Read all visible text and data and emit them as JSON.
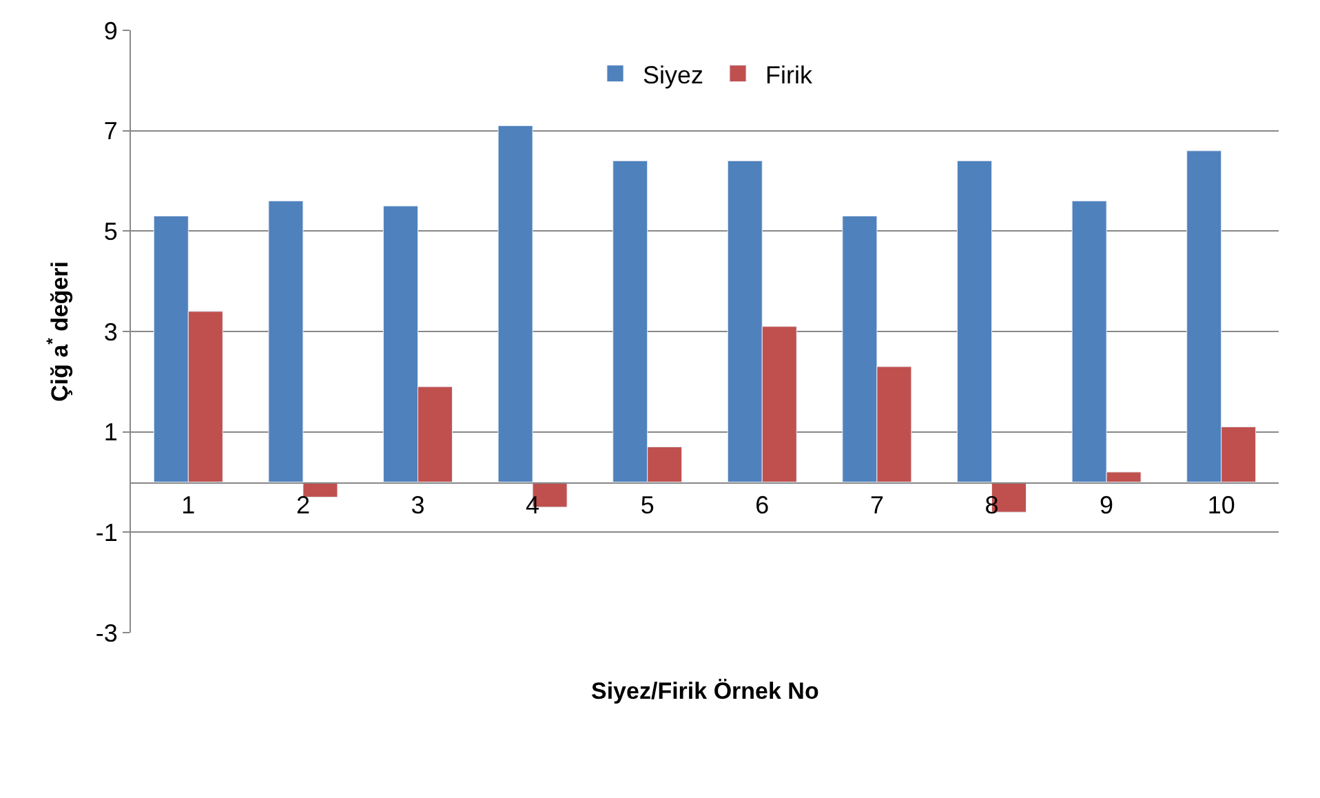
{
  "chart_data": {
    "type": "bar",
    "xlabel": "Siyez/Firik Örnek No",
    "ylabel": "Çiğ a$^{*}$ değeri",
    "categories": [
      "1",
      "2",
      "3",
      "4",
      "5",
      "6",
      "7",
      "8",
      "9",
      "10"
    ],
    "series": [
      {
        "name": "Siyez",
        "color": "#4f81bd",
        "values": [
          5.3,
          5.6,
          5.5,
          7.1,
          6.4,
          6.4,
          5.3,
          6.4,
          5.6,
          6.6
        ]
      },
      {
        "name": "Firik",
        "color": "#c0504d",
        "values": [
          3.4,
          -0.3,
          1.9,
          -0.5,
          0.7,
          3.1,
          2.3,
          -0.6,
          0.2,
          1.1
        ]
      }
    ],
    "ylim": [
      -3,
      9
    ],
    "yticks": [
      -3,
      -1,
      1,
      3,
      5,
      7,
      9
    ],
    "grid": "y",
    "legend": "top"
  }
}
